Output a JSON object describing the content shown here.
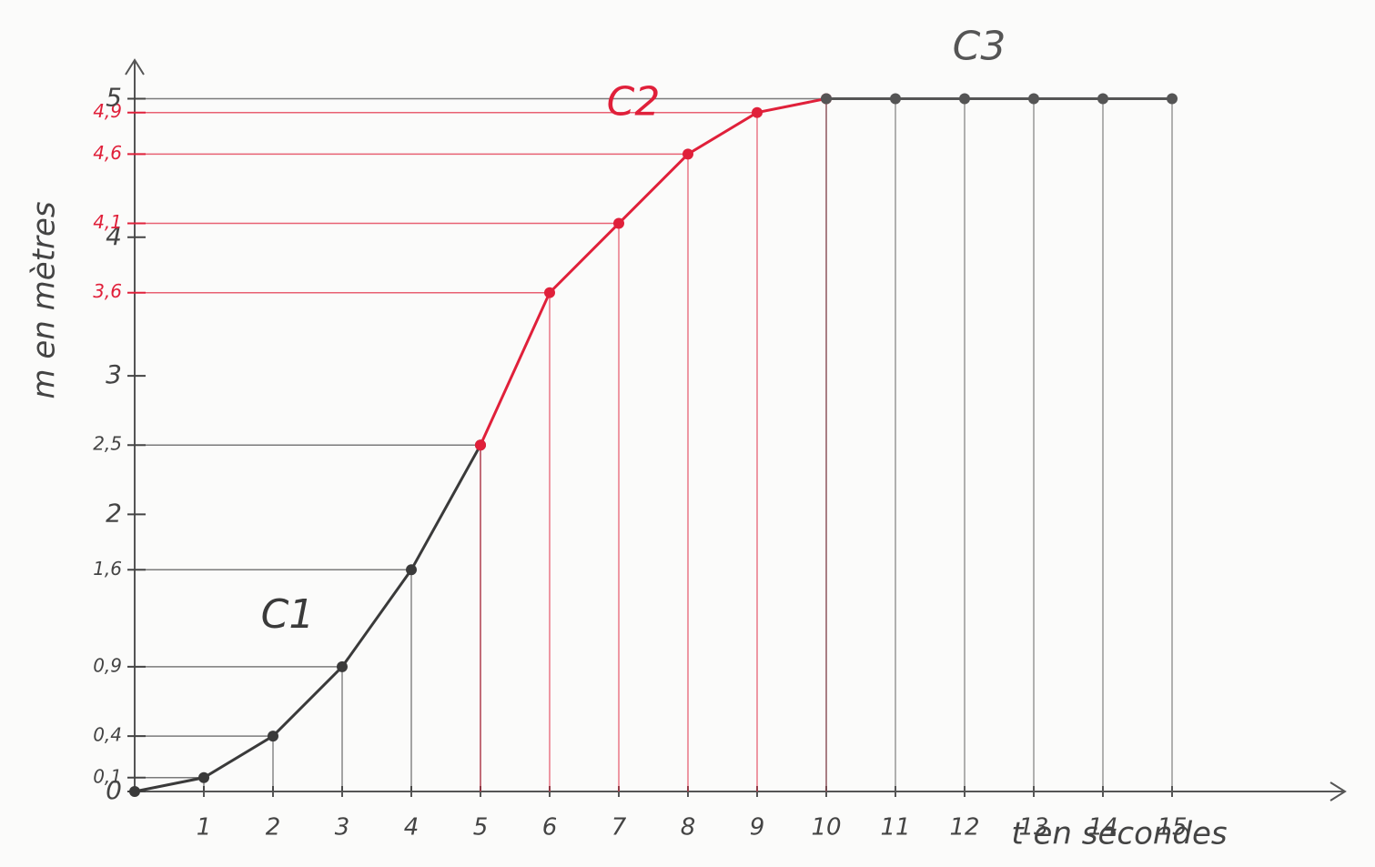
{
  "chart_data": {
    "type": "line",
    "x_label": "t en secondes",
    "y_label": "m en mètres",
    "xlim": [
      0,
      17.5
    ],
    "ylim": [
      0,
      5.2
    ],
    "xticks": [
      1,
      2,
      3,
      4,
      5,
      6,
      7,
      8,
      9,
      10,
      11,
      12,
      13,
      14,
      15
    ],
    "yticks": [
      0,
      {
        "value": 0.1,
        "label": "0,1"
      },
      {
        "value": 0.4,
        "label": "0,4"
      },
      {
        "value": 0.9,
        "label": "0,9"
      },
      {
        "value": 1.6,
        "label": "1,6"
      },
      2,
      {
        "value": 2.5,
        "label": "2,5"
      },
      3,
      {
        "value": 3.6,
        "label": "3,6"
      },
      4,
      {
        "value": 4.1,
        "label": "4,1"
      },
      {
        "value": 4.6,
        "label": "4,6"
      },
      {
        "value": 4.9,
        "label": "4,9"
      },
      5
    ],
    "highlight_yticks": [
      3.6,
      4.1,
      4.6,
      4.9
    ],
    "highlight_color": "#e0203a",
    "series": [
      {
        "name": "C1",
        "color": "#3a3a3a",
        "x": [
          0,
          1,
          2,
          3,
          4,
          5
        ],
        "values": [
          0,
          0.1,
          0.4,
          0.9,
          1.6,
          2.5
        ]
      },
      {
        "name": "C2",
        "color": "#e0203a",
        "x": [
          5,
          6,
          7,
          8,
          9,
          10
        ],
        "values": [
          2.5,
          3.6,
          4.1,
          4.6,
          4.9,
          5
        ]
      },
      {
        "name": "C3",
        "color": "#555555",
        "x": [
          10,
          11,
          12,
          13,
          14,
          15
        ],
        "values": [
          5,
          5,
          5,
          5,
          5,
          5
        ]
      }
    ]
  }
}
